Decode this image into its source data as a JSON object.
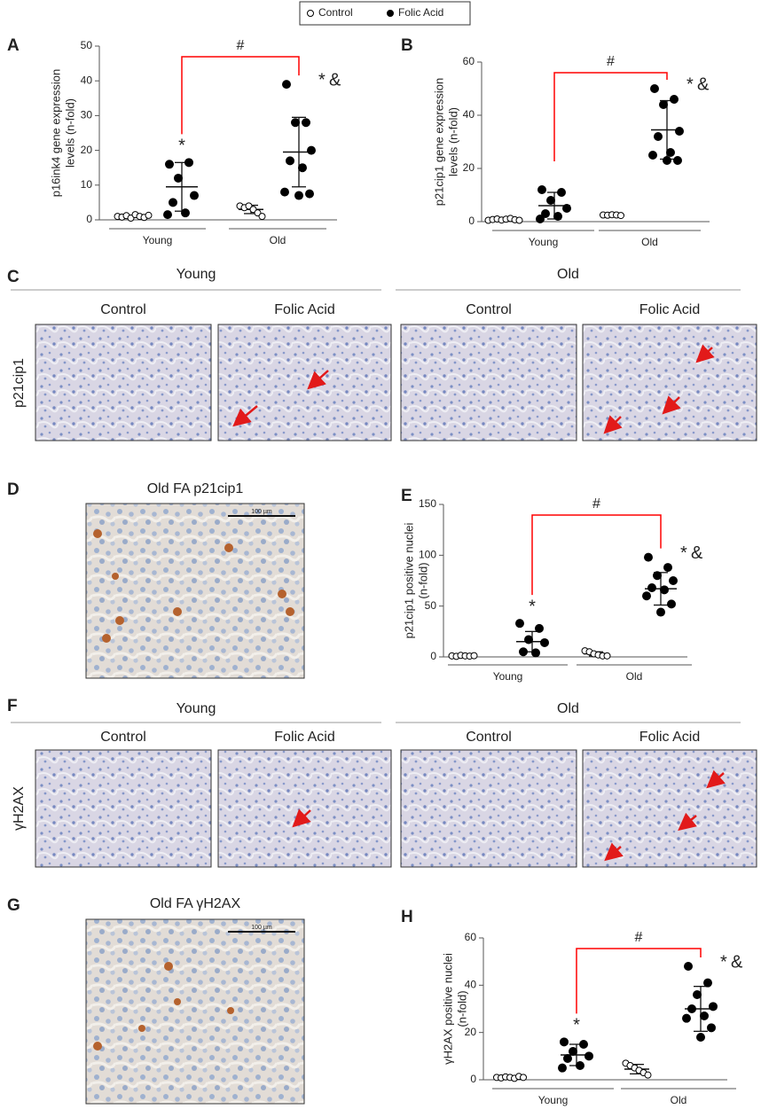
{
  "chart_data": [
    {
      "type": "dotplot",
      "panel": "A",
      "ylabel": [
        "p16ink4 gene expression",
        "levels (n-fold)"
      ],
      "groups": [
        "Young",
        "Old"
      ],
      "ylim": [
        0,
        50
      ],
      "yticks": [
        0,
        10,
        20,
        30,
        40,
        50
      ],
      "series": [
        {
          "name": "Control",
          "color": "#000000",
          "filled": false,
          "values": [
            [
              1,
              0.8,
              1.2,
              0.5,
              1.5,
              1,
              0.7,
              1.3
            ],
            [
              4,
              3.5,
              4,
              3,
              2,
              1
            ]
          ],
          "mean": [
            1,
            3
          ],
          "sd": [
            0.3,
            1.2
          ],
          "annotations": [
            [],
            []
          ]
        },
        {
          "name": "Folic Acid",
          "color": "#000000",
          "filled": true,
          "values": [
            [
              16,
              16.5,
              12,
              7,
              5,
              2,
              1.5
            ],
            [
              39,
              28,
              28,
              20,
              17,
              15,
              8,
              7.5,
              7
            ]
          ],
          "mean": [
            9.5,
            19.5
          ],
          "sd": [
            7,
            10
          ],
          "annotations": [
            [
              {
                "text": "*",
                "color": "#4040ff"
              }
            ],
            [
              {
                "text": "*",
                "color": "#4040ff"
              },
              {
                "text": "&",
                "color": "#2a9a2a"
              }
            ]
          ]
        }
      ],
      "bracket": {
        "text": "#",
        "color": "#ff0000"
      }
    },
    {
      "type": "dotplot",
      "panel": "B",
      "ylabel": [
        "p21cip1 gene expression",
        "levels (n-fold)"
      ],
      "groups": [
        "Young",
        "Old"
      ],
      "ylim": [
        0,
        60
      ],
      "yticks": [
        0,
        20,
        40,
        60
      ],
      "series": [
        {
          "color": "#000000",
          "filled": false,
          "values": [
            [
              0.5,
              0.8,
              1,
              0.6,
              0.9,
              1.2,
              0.7,
              0.5
            ],
            [
              2.5,
              2.4,
              2.6,
              2.5,
              2.3
            ]
          ],
          "mean": [
            0.8,
            2.5
          ],
          "sd": [
            0.4,
            0.3
          ],
          "annotations": [
            [],
            []
          ]
        },
        {
          "color": "#000000",
          "filled": true,
          "values": [
            [
              12,
              11,
              8,
              5,
              3,
              2,
              1
            ],
            [
              50,
              46,
              44,
              34,
              32,
              26,
              25,
              23,
              23
            ]
          ],
          "mean": [
            6,
            34.5
          ],
          "sd": [
            5,
            11
          ],
          "annotations": [
            [],
            [
              {
                "text": "*",
                "color": "#4040ff"
              },
              {
                "text": "&",
                "color": "#2a9a2a"
              }
            ]
          ]
        }
      ],
      "bracket": {
        "text": "#",
        "color": "#ff0000"
      }
    },
    {
      "type": "dotplot",
      "panel": "E",
      "ylabel": [
        "p21cip1 positive nuclei",
        "(n-fold)"
      ],
      "groups": [
        "Young",
        "Old"
      ],
      "ylim": [
        0,
        150
      ],
      "yticks": [
        0,
        50,
        100,
        150
      ],
      "series": [
        {
          "color": "#000000",
          "filled": false,
          "values": [
            [
              1,
              0.5,
              1.5,
              1,
              0.8,
              1.2
            ],
            [
              6,
              5,
              3,
              2,
              1,
              1
            ]
          ],
          "mean": [
            1,
            3
          ],
          "sd": [
            0.5,
            2
          ],
          "annotations": [
            [],
            []
          ]
        },
        {
          "color": "#000000",
          "filled": true,
          "values": [
            [
              33,
              28,
              17,
              14,
              5,
              4
            ],
            [
              98,
              88,
              80,
              75,
              68,
              66,
              60,
              52,
              44
            ]
          ],
          "mean": [
            15,
            67
          ],
          "sd": [
            10,
            16
          ],
          "annotations": [
            [
              {
                "text": "*",
                "color": "#4040ff"
              }
            ],
            [
              {
                "text": "*",
                "color": "#4040ff"
              },
              {
                "text": "&",
                "color": "#2a9a2a"
              }
            ]
          ]
        }
      ],
      "bracket": {
        "text": "#",
        "color": "#ff0000"
      }
    },
    {
      "type": "dotplot",
      "panel": "H",
      "ylabel": [
        "γH2AX positive nuclei",
        "(n-fold)"
      ],
      "groups": [
        "Young",
        "Old"
      ],
      "ylim": [
        0,
        60
      ],
      "yticks": [
        0,
        20,
        40,
        60
      ],
      "series": [
        {
          "color": "#000000",
          "filled": false,
          "values": [
            [
              1,
              0.8,
              1.2,
              1,
              0.6,
              1.4,
              1
            ],
            [
              7,
              6,
              5,
              4,
              3,
              2
            ]
          ],
          "mean": [
            1,
            4.5
          ],
          "sd": [
            0.5,
            2
          ],
          "annotations": [
            [],
            []
          ]
        },
        {
          "color": "#000000",
          "filled": true,
          "values": [
            [
              16,
              15,
              12,
              10,
              9,
              6,
              5
            ],
            [
              48,
              41,
              36,
              31,
              30,
              27,
              26,
              22,
              18
            ]
          ],
          "mean": [
            10.5,
            30
          ],
          "sd": [
            4.5,
            9.5
          ],
          "annotations": [
            [
              {
                "text": "*",
                "color": "#4040ff"
              }
            ],
            [
              {
                "text": "*",
                "color": "#4040ff"
              },
              {
                "text": "&",
                "color": "#2a9a2a"
              }
            ]
          ]
        }
      ],
      "bracket": {
        "text": "#",
        "color": "#ff0000"
      }
    }
  ],
  "images": [
    {
      "panel": "C",
      "groups": [
        "Young",
        "Old"
      ],
      "columns": [
        "Control",
        "Folic Acid",
        "Control",
        "Folic Acid"
      ],
      "row_label": "p21cip1"
    },
    {
      "panel": "D",
      "title": "Old FA p21cip1",
      "scale": "100 µm"
    },
    {
      "panel": "F",
      "groups": [
        "Young",
        "Old"
      ],
      "columns": [
        "Control",
        "Folic Acid",
        "Control",
        "Folic Acid"
      ],
      "row_label": "γH2AX"
    },
    {
      "panel": "G",
      "title": "Old FA γH2AX",
      "scale": "100 µm"
    }
  ]
}
